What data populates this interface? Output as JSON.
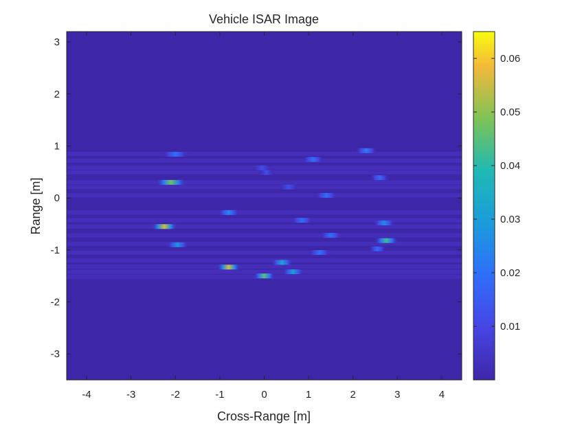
{
  "chart_data": {
    "type": "heatmap",
    "title": "Vehicle ISAR Image",
    "xlabel": "Cross-Range [m]",
    "ylabel": "Range [m]",
    "xlim": [
      -4.45,
      4.45
    ],
    "ylim": [
      -3.5,
      3.2
    ],
    "x_ticks": [
      -4,
      -3,
      -2,
      -1,
      0,
      1,
      2,
      3,
      4
    ],
    "x_tick_labels": [
      "-4",
      "-3",
      "-2",
      "-1",
      "0",
      "1",
      "2",
      "3",
      "4"
    ],
    "y_ticks": [
      3,
      2,
      1,
      0,
      -1,
      -2,
      -3
    ],
    "y_tick_labels": [
      "3",
      "2",
      "1",
      "0",
      "-1",
      "-2",
      "-3"
    ],
    "colormap": "parula",
    "background_color": "#3e26a8",
    "colorbar": {
      "range": [
        0,
        0.065
      ],
      "ticks": [
        0.01,
        0.02,
        0.03,
        0.04,
        0.05,
        0.06
      ],
      "tick_labels": [
        "0.01",
        "0.02",
        "0.03",
        "0.04",
        "0.05",
        "0.06"
      ]
    },
    "range_lines": [
      0.85,
      0.72,
      0.58,
      0.49,
      0.3,
      0.21,
      0.05,
      -0.28,
      -0.43,
      -0.55,
      -0.72,
      -0.88,
      -1.05,
      -1.2,
      -1.32,
      -1.42,
      -1.52
    ],
    "scatterers": [
      {
        "x": 2.3,
        "y": 0.91,
        "width": 0.5,
        "value": 0.022
      },
      {
        "x": -2.0,
        "y": 0.84,
        "width": 0.6,
        "value": 0.02
      },
      {
        "x": 1.1,
        "y": 0.74,
        "width": 0.5,
        "value": 0.02
      },
      {
        "x": -0.05,
        "y": 0.58,
        "width": 0.45,
        "value": 0.012
      },
      {
        "x": 0.05,
        "y": 0.49,
        "width": 0.35,
        "value": 0.012
      },
      {
        "x": 2.6,
        "y": 0.39,
        "width": 0.45,
        "value": 0.018
      },
      {
        "x": -2.1,
        "y": 0.3,
        "width": 0.7,
        "value": 0.047
      },
      {
        "x": 0.55,
        "y": 0.21,
        "width": 0.45,
        "value": 0.012
      },
      {
        "x": 1.4,
        "y": 0.05,
        "width": 0.5,
        "value": 0.02
      },
      {
        "x": -0.8,
        "y": -0.28,
        "width": 0.5,
        "value": 0.025
      },
      {
        "x": 0.85,
        "y": -0.43,
        "width": 0.5,
        "value": 0.02
      },
      {
        "x": 2.7,
        "y": -0.48,
        "width": 0.5,
        "value": 0.025
      },
      {
        "x": -2.25,
        "y": -0.55,
        "width": 0.6,
        "value": 0.055
      },
      {
        "x": 1.5,
        "y": -0.72,
        "width": 0.5,
        "value": 0.02
      },
      {
        "x": 2.75,
        "y": -0.82,
        "width": 0.55,
        "value": 0.042
      },
      {
        "x": -1.95,
        "y": -0.9,
        "width": 0.5,
        "value": 0.028
      },
      {
        "x": 2.55,
        "y": -0.98,
        "width": 0.4,
        "value": 0.018
      },
      {
        "x": 1.25,
        "y": -1.05,
        "width": 0.5,
        "value": 0.02
      },
      {
        "x": 0.4,
        "y": -1.24,
        "width": 0.5,
        "value": 0.032
      },
      {
        "x": -0.8,
        "y": -1.33,
        "width": 0.55,
        "value": 0.055
      },
      {
        "x": 0.65,
        "y": -1.42,
        "width": 0.5,
        "value": 0.03
      },
      {
        "x": 0.0,
        "y": -1.5,
        "width": 0.5,
        "value": 0.045
      }
    ]
  }
}
